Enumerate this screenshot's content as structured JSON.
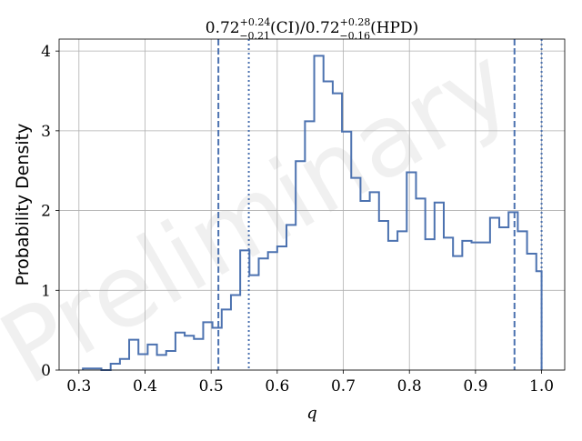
{
  "chart_data": {
    "type": "step-histogram",
    "title": {
      "center": "0.72",
      "ci_plus": "+0.24",
      "ci_minus": "−0.21",
      "ci_tag": "(CI)",
      "separator": "/",
      "hpd_center": "0.72",
      "hpd_plus": "+0.28",
      "hpd_minus": "−0.16",
      "hpd_tag": "(HPD)"
    },
    "xlabel": "q",
    "ylabel": "Probability Density",
    "watermark": "Preliminary",
    "xlim": [
      0.27,
      1.035
    ],
    "ylim": [
      0,
      4.15
    ],
    "xticks": [
      0.3,
      0.4,
      0.5,
      0.6,
      0.7,
      0.8,
      0.9,
      1.0
    ],
    "xtick_labels": [
      "0.3",
      "0.4",
      "0.5",
      "0.6",
      "0.7",
      "0.8",
      "0.9",
      "1.0"
    ],
    "yticks": [
      0,
      1,
      2,
      3,
      4
    ],
    "ytick_labels": [
      "0",
      "1",
      "2",
      "3",
      "4"
    ],
    "grid": true,
    "color": "#4C72B0",
    "bins": {
      "edges": [
        0.306,
        0.32,
        0.334,
        0.348,
        0.362,
        0.376,
        0.39,
        0.404,
        0.418,
        0.432,
        0.446,
        0.46,
        0.474,
        0.488,
        0.502,
        0.516,
        0.53,
        0.544,
        0.558,
        0.572,
        0.586,
        0.6,
        0.614,
        0.628,
        0.642,
        0.656,
        0.67,
        0.684,
        0.698,
        0.712,
        0.726,
        0.74,
        0.754,
        0.768,
        0.782,
        0.796,
        0.81,
        0.824,
        0.838,
        0.852,
        0.866,
        0.88,
        0.894,
        0.908,
        0.922,
        0.936,
        0.95,
        0.964,
        0.978,
        0.992,
        1.0
      ],
      "values": [
        0.02,
        0.02,
        0.0,
        0.08,
        0.14,
        0.38,
        0.2,
        0.32,
        0.19,
        0.24,
        0.47,
        0.43,
        0.39,
        0.6,
        0.53,
        0.76,
        0.94,
        1.5,
        1.19,
        1.4,
        1.48,
        1.55,
        1.82,
        2.62,
        3.12,
        3.94,
        3.62,
        3.47,
        2.99,
        2.41,
        2.12,
        2.23,
        1.87,
        1.62,
        1.74,
        2.48,
        2.15,
        1.64,
        2.1,
        1.66,
        1.43,
        1.62,
        1.6,
        1.6,
        1.91,
        1.79,
        1.98,
        1.74,
        1.46,
        1.24
      ]
    },
    "vlines": [
      {
        "x": 0.511,
        "style": "dashed"
      },
      {
        "x": 0.959,
        "style": "dashed"
      },
      {
        "x": 0.557,
        "style": "dotted"
      },
      {
        "x": 1.0,
        "style": "dotted"
      }
    ]
  }
}
